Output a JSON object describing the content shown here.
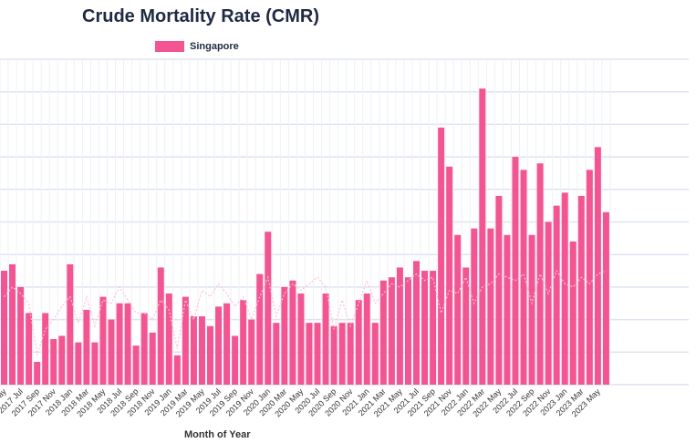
{
  "chart_data": {
    "type": "bar",
    "title": "Crude Mortality Rate (CMR)",
    "xlabel": "Month of Year",
    "ylabel": "",
    "ylim": [
      0,
      100
    ],
    "grid": true,
    "legend_position": "top",
    "series": [
      {
        "name": "Singapore",
        "color": "#f25591",
        "values": [
          35,
          37,
          30,
          22,
          7,
          22,
          14,
          15,
          37,
          13,
          23,
          13,
          27,
          20,
          25,
          25,
          12,
          22,
          16,
          36,
          28,
          9,
          27,
          21,
          21,
          18,
          24,
          25,
          15,
          26,
          20,
          34,
          47,
          19,
          30,
          32,
          28,
          19,
          19,
          28,
          18,
          19,
          19,
          26,
          28,
          19,
          32,
          33,
          36,
          33,
          38,
          35,
          35,
          79,
          67,
          46,
          36,
          48,
          91,
          48,
          58,
          46,
          70,
          66,
          46,
          68,
          50,
          55,
          59,
          44,
          58,
          66,
          73,
          53
        ]
      }
    ],
    "reference_line": [
      27,
      30,
      28,
      25,
      9,
      17,
      20,
      24,
      27,
      19,
      27,
      18,
      26,
      25,
      30,
      26,
      22,
      22,
      20,
      26,
      23,
      11,
      26,
      20,
      29,
      27,
      31,
      28,
      24,
      27,
      20,
      27,
      33,
      21,
      28,
      31,
      29,
      31,
      33,
      30,
      17,
      26,
      18,
      25,
      32,
      25,
      28,
      31,
      30,
      32,
      34,
      32,
      33,
      22,
      29,
      28,
      33,
      25,
      30,
      31,
      34,
      33,
      32,
      34,
      25,
      34,
      28,
      35,
      31,
      30,
      33,
      31,
      34,
      35
    ],
    "x_tick_labels": [
      "...ay",
      "2017 Jul",
      "2017 Sep",
      "2017 Nov",
      "2018 Jan",
      "2018 Mar",
      "2018 May",
      "2018 Jul",
      "2018 Sep",
      "2018 Nov",
      "2019 Jan",
      "2019 Mar",
      "2019 May",
      "2019 Jul",
      "2019 Sep",
      "2019 Nov",
      "2020 Jan",
      "2020 Mar",
      "2020 May",
      "2020 Jul",
      "2020 Sep",
      "2020 Nov",
      "2021 Jan",
      "2021 Mar",
      "2021 May",
      "2021 Jul",
      "2021 Sep",
      "2021 Nov",
      "2022 Jan",
      "2022 Mar",
      "2022 May",
      "2022 Jul",
      "2022 Sep",
      "2022 Nov",
      "2023 Jan",
      "2023 Mar",
      "2023 May"
    ]
  }
}
